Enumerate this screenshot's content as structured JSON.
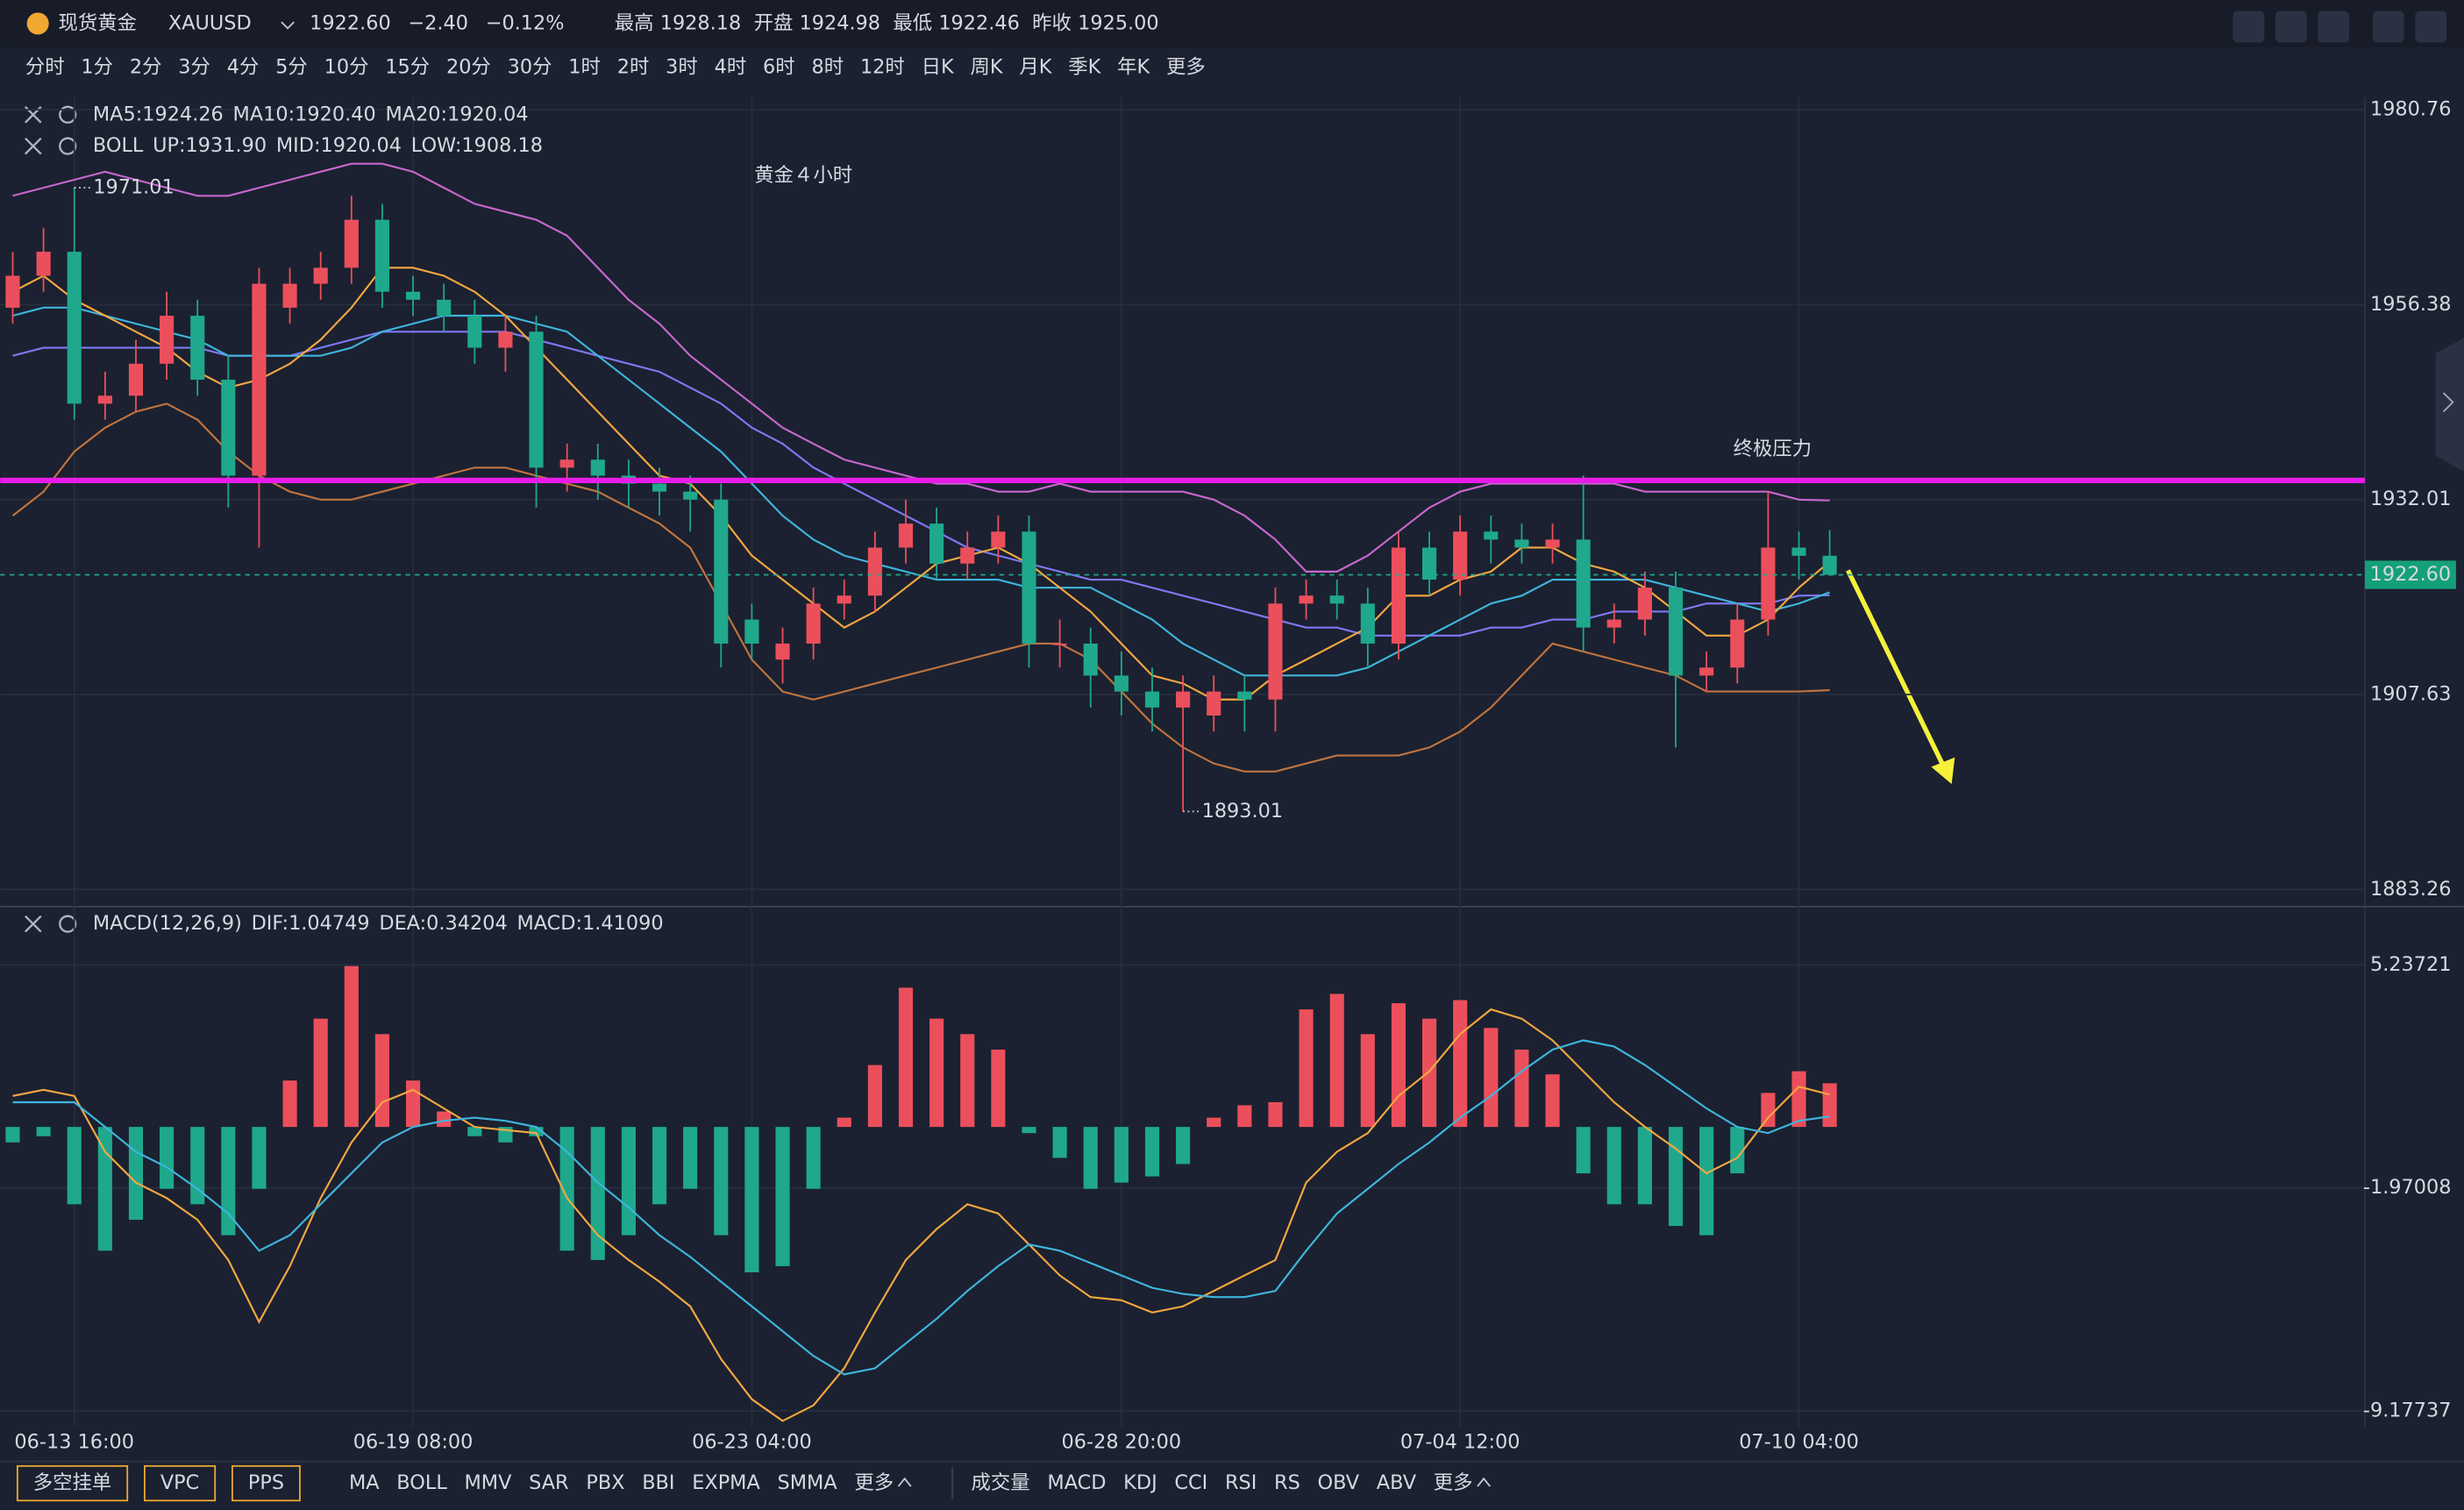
{
  "header": {
    "name": "现货黄金",
    "symbol": "XAUUSD",
    "price": "1922.60",
    "change": "−2.40",
    "change_pct": "−0.12%",
    "high_label": "最高",
    "high": "1928.18",
    "open_label": "开盘",
    "open": "1924.98",
    "low_label": "最低",
    "low": "1922.46",
    "prev_close_label": "昨收",
    "prev_close": "1925.00"
  },
  "timeframes": {
    "items": [
      "分时",
      "1分",
      "2分",
      "3分",
      "4分",
      "5分",
      "10分",
      "15分",
      "20分",
      "30分",
      "1时",
      "2时",
      "3时",
      "4时",
      "6时",
      "8时",
      "12时",
      "日K",
      "周K",
      "月K",
      "季K",
      "年K",
      "更多"
    ],
    "selected": 13
  },
  "bottom_bar": {
    "buttons": [
      "多空挂单",
      "VPC",
      "PPS"
    ],
    "overlay_indicators": [
      "MA",
      "BOLL",
      "MMV",
      "SAR",
      "PBX",
      "BBI",
      "EXPMA",
      "SMMA",
      "更多"
    ],
    "sub_indicators": [
      "成交量",
      "MACD",
      "KDJ",
      "CCI",
      "RSI",
      "RS",
      "OBV",
      "ABV",
      "更多"
    ]
  },
  "chart_data": [
    {
      "type": "candlestick",
      "annotations": {
        "title_text": "黄金４小时",
        "resistance_text": "终极压力",
        "resistance_level": 1934.4,
        "resistance_color": "#e81ce8"
      },
      "categories": [
        null,
        null,
        "06-13 16:00",
        null,
        null,
        null,
        null,
        null,
        null,
        null,
        null,
        null,
        null,
        "06-19 08:00",
        null,
        null,
        null,
        null,
        null,
        null,
        null,
        null,
        null,
        null,
        "06-23 04:00",
        null,
        null,
        null,
        null,
        null,
        null,
        null,
        null,
        null,
        null,
        null,
        "06-28 20:00",
        null,
        null,
        null,
        null,
        null,
        null,
        null,
        null,
        null,
        null,
        "07-04 12:00",
        null,
        null,
        null,
        null,
        null,
        null,
        null,
        null,
        null,
        null,
        "07-10 04:00",
        null
      ],
      "open": [
        1956,
        1960,
        1963,
        1944,
        1945,
        1949,
        1955,
        1947,
        1935,
        1956,
        1959,
        1961,
        1967,
        1958,
        1957,
        1955,
        1951,
        1953,
        1936,
        1937,
        1935,
        1934,
        1933,
        1932,
        1917,
        1912,
        1914,
        1919,
        1920,
        1926,
        1929,
        1924,
        1926,
        1928,
        1914,
        1914,
        1910,
        1908,
        1906,
        1905,
        1908,
        1907,
        1919,
        1920,
        1919,
        1914,
        1926,
        1922,
        1928,
        1927,
        1926,
        1927,
        1916,
        1917,
        1921,
        1910,
        1911,
        1917,
        1926,
        1924.98
      ],
      "high": [
        1963,
        1966,
        1971.01,
        1948,
        1952,
        1958,
        1957,
        1950,
        1961,
        1961,
        1963,
        1970,
        1969,
        1960,
        1959,
        1957,
        1955,
        1955,
        1939,
        1939,
        1937,
        1936,
        1935,
        1934,
        1919,
        1916,
        1921,
        1922,
        1928,
        1932,
        1931,
        1928,
        1930,
        1930,
        1917,
        1916,
        1913,
        1911,
        1910,
        1910,
        1910,
        1921,
        1922,
        1922,
        1921,
        1928,
        1928,
        1930,
        1930,
        1929,
        1929,
        1935,
        1919,
        1923,
        1923,
        1913,
        1919,
        1933,
        1928,
        1928.18
      ],
      "low": [
        1954,
        1958,
        1942,
        1942,
        1943,
        1947,
        1945,
        1931,
        1926,
        1954,
        1957,
        1959,
        1956,
        1955,
        1953,
        1949,
        1948,
        1931,
        1933,
        1932,
        1931,
        1930,
        1928,
        1911,
        1912,
        1909,
        1912,
        1917,
        1918,
        1924,
        1922,
        1922,
        1924,
        1911,
        1911,
        1906,
        1905,
        1903,
        1893.01,
        1903,
        1903,
        1903,
        1917,
        1917,
        1911,
        1912,
        1920,
        1920,
        1924,
        1924,
        1924,
        1913,
        1914,
        1915,
        1901,
        1908,
        1909,
        1915,
        1922,
        1922.46
      ],
      "close": [
        1960,
        1963,
        1944,
        1945,
        1949,
        1955,
        1947,
        1935,
        1959,
        1959,
        1961,
        1967,
        1958,
        1957,
        1955,
        1951,
        1953,
        1936,
        1937,
        1935,
        1934,
        1933,
        1932,
        1914,
        1914,
        1914,
        1919,
        1920,
        1926,
        1929,
        1924,
        1926,
        1928,
        1914,
        1914,
        1910,
        1908,
        1906,
        1908,
        1908,
        1907,
        1919,
        1920,
        1919,
        1914,
        1926,
        1922,
        1928,
        1927,
        1926,
        1927,
        1916,
        1917,
        1921,
        1910,
        1911,
        1917,
        1926,
        1924.98,
        1922.6
      ],
      "up_color": "#ec4f5c",
      "down_color": "#1fa88c",
      "series": [
        {
          "name": "MA5:1924.26",
          "color": "#f5a742",
          "values": [
            1958,
            1960,
            1957,
            1955,
            1953,
            1951,
            1948,
            1946,
            1947,
            1949,
            1952,
            1956,
            1961,
            1961,
            1960,
            1958,
            1955,
            1951,
            1947,
            1943,
            1939,
            1935,
            1934,
            1930,
            1925,
            1922,
            1919,
            1916,
            1918,
            1921,
            1924,
            1925,
            1926,
            1924,
            1921,
            1918,
            1914,
            1910,
            1909,
            1907,
            1907,
            1910,
            1912,
            1914,
            1916,
            1920,
            1920,
            1922,
            1923,
            1926,
            1926,
            1924,
            1923,
            1921,
            1918,
            1915,
            1915,
            1917,
            1921,
            1924.26
          ]
        },
        {
          "name": "MA10:1920.40",
          "color": "#3fb5dd",
          "values": [
            1955,
            1956,
            1956,
            1955,
            1954,
            1953,
            1952,
            1950,
            1950,
            1950,
            1950,
            1951,
            1953,
            1954,
            1955,
            1955,
            1955,
            1954,
            1953,
            1950,
            1947,
            1944,
            1941,
            1938,
            1934,
            1930,
            1927,
            1925,
            1924,
            1923,
            1922,
            1922,
            1922,
            1921,
            1921,
            1921,
            1919,
            1917,
            1914,
            1912,
            1910,
            1910,
            1910,
            1910,
            1911,
            1913,
            1915,
            1917,
            1919,
            1920,
            1922,
            1922,
            1922,
            1922,
            1921,
            1920,
            1919,
            1918,
            1919,
            1920.4
          ]
        },
        {
          "name": "MA20:1920.04",
          "color": "#7d79f2",
          "values": [
            1950,
            1951,
            1951,
            1951,
            1951,
            1951,
            1951,
            1950,
            1950,
            1950,
            1951,
            1952,
            1953,
            1953,
            1953,
            1953,
            1953,
            1952,
            1951,
            1950,
            1949,
            1948,
            1946,
            1944,
            1941,
            1939,
            1936,
            1934,
            1932,
            1930,
            1928,
            1926,
            1925,
            1924,
            1923,
            1922,
            1922,
            1921,
            1920,
            1919,
            1918,
            1917,
            1916,
            1916,
            1915,
            1915,
            1915,
            1915,
            1916,
            1916,
            1917,
            1917,
            1918,
            1918,
            1918,
            1919,
            1919,
            1919,
            1920,
            1920.04
          ]
        },
        {
          "name": "UP:1931.90",
          "color": "#c767cf",
          "values": [
            1970,
            1971,
            1972,
            1973,
            1972,
            1971,
            1970,
            1970,
            1971,
            1972,
            1973,
            1974,
            1974,
            1973,
            1971,
            1969,
            1968,
            1967,
            1965,
            1961,
            1957,
            1954,
            1950,
            1947,
            1944,
            1941,
            1939,
            1937,
            1936,
            1935,
            1934,
            1934,
            1933,
            1933,
            1934,
            1933,
            1933,
            1933,
            1933,
            1932,
            1930,
            1927,
            1923,
            1923,
            1925,
            1928,
            1931,
            1933,
            1934,
            1934,
            1934,
            1934,
            1934,
            1933,
            1933,
            1933,
            1933,
            1933,
            1932,
            1931.9
          ]
        },
        {
          "name": "LOW:1908.18",
          "color": "#c07440",
          "values": [
            1930,
            1933,
            1938,
            1941,
            1943,
            1944,
            1942,
            1938,
            1935,
            1933,
            1932,
            1932,
            1933,
            1934,
            1935,
            1936,
            1936,
            1935,
            1934,
            1933,
            1931,
            1929,
            1926,
            1919,
            1912,
            1908,
            1907,
            1908,
            1909,
            1910,
            1911,
            1912,
            1913,
            1914,
            1914,
            1912,
            1908,
            1904,
            1901,
            1899,
            1898,
            1898,
            1899,
            1900,
            1900,
            1900,
            1901,
            1903,
            1906,
            1910,
            1914,
            1913,
            1912,
            1911,
            1910,
            1908,
            1908,
            1908,
            1908,
            1908.18
          ]
        }
      ],
      "boll_label": "BOLL",
      "mid_label": "MID:1920.04",
      "mid_color": "#8c8cf7",
      "price_line": {
        "value": 1922.6,
        "label": "1922.60"
      },
      "ylim": [
        1881.3,
        1982.3
      ],
      "yticks": [
        1883.26,
        1907.63,
        1932.01,
        1956.38,
        1980.76
      ],
      "grid": true
    },
    {
      "type": "macd",
      "title": "MACD(12,26,9)",
      "series": [
        {
          "name": "MACD:1.41090",
          "color": "#a58bf5",
          "kind": "bar",
          "values": [
            -0.5,
            -0.3,
            -2.5,
            -4,
            -3,
            -2,
            -2.5,
            -3.5,
            -2,
            1.5,
            3.5,
            5.2,
            3,
            1.5,
            0.5,
            -0.3,
            -0.5,
            -0.3,
            -4,
            -4.3,
            -3.5,
            -2.5,
            -2,
            -3.5,
            -4.7,
            -4.5,
            -2,
            0.3,
            2,
            4.5,
            3.5,
            3,
            2.5,
            -0.2,
            -1,
            -2,
            -1.8,
            -1.6,
            -1.2,
            0.3,
            0.7,
            0.8,
            3.8,
            4.3,
            3,
            4,
            3.5,
            4.1,
            3.2,
            2.5,
            1.7,
            -1.5,
            -2.5,
            -2.5,
            -3.2,
            -3.5,
            -1.5,
            1.1,
            1.8,
            1.4109
          ]
        },
        {
          "name": "DIF:1.04749",
          "color": "#f5a742",
          "kind": "line",
          "values": [
            1.0,
            1.2,
            1.0,
            -0.8,
            -1.8,
            -2.3,
            -3.0,
            -4.3,
            -6.3,
            -4.5,
            -2.3,
            -0.5,
            0.8,
            1.2,
            0.6,
            0,
            -0.1,
            -0.2,
            -2.3,
            -3.5,
            -4.3,
            -5.0,
            -5.8,
            -7.5,
            -8.8,
            -9.5,
            -9.0,
            -7.8,
            -6.0,
            -4.3,
            -3.3,
            -2.5,
            -2.8,
            -3.8,
            -4.8,
            -5.5,
            -5.6,
            -6.0,
            -5.8,
            -5.3,
            -4.8,
            -4.3,
            -1.8,
            -0.8,
            -0.2,
            1.0,
            1.8,
            3.0,
            3.8,
            3.5,
            2.8,
            1.8,
            0.8,
            0.0,
            -0.7,
            -1.5,
            -1.0,
            0.3,
            1.3,
            1.04749
          ]
        },
        {
          "name": "DEA:0.34204",
          "color": "#3fb5dd",
          "kind": "line",
          "values": [
            0.8,
            0.8,
            0.8,
            0,
            -0.8,
            -1.3,
            -2.0,
            -2.8,
            -4.0,
            -3.5,
            -2.5,
            -1.5,
            -0.5,
            0,
            0.2,
            0.3,
            0.2,
            0,
            -0.8,
            -1.8,
            -2.6,
            -3.5,
            -4.2,
            -5.0,
            -5.8,
            -6.6,
            -7.4,
            -8.0,
            -7.8,
            -7.0,
            -6.2,
            -5.3,
            -4.5,
            -3.8,
            -4.0,
            -4.4,
            -4.8,
            -5.2,
            -5.4,
            -5.5,
            -5.5,
            -5.3,
            -4.0,
            -2.8,
            -2.0,
            -1.2,
            -0.5,
            0.3,
            1.0,
            1.8,
            2.5,
            2.8,
            2.6,
            2.0,
            1.3,
            0.6,
            0,
            -0.2,
            0.2,
            0.34204
          ]
        }
      ],
      "ylim": [
        -9.69,
        7.07
      ],
      "yticks": [
        -9.17737,
        -1.97008,
        5.23721
      ],
      "grid": true
    }
  ]
}
